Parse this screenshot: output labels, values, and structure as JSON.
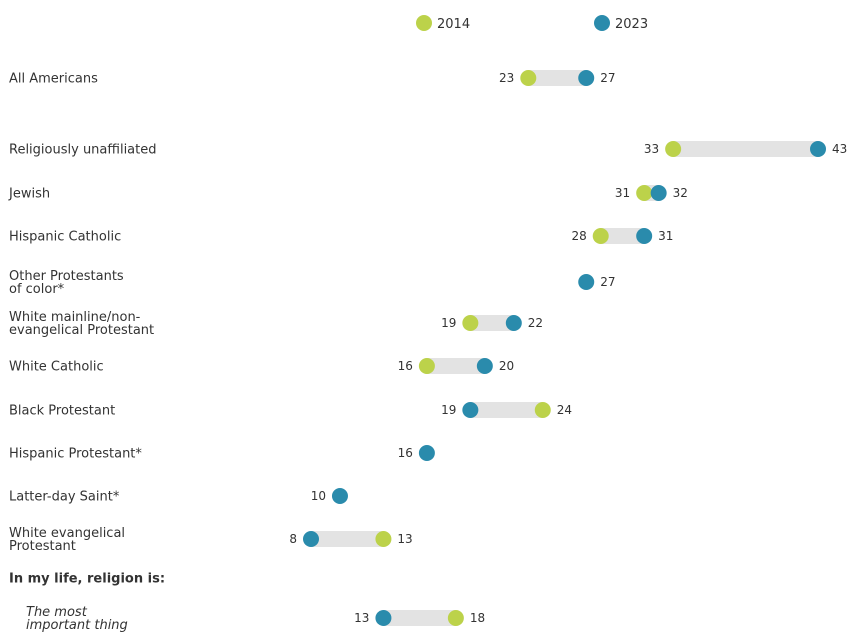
{
  "colors": {
    "y2014": "#bcd24a",
    "y2023": "#2a8bac",
    "range": "#e3e3e3",
    "text": "#333333"
  },
  "legend": {
    "label_2014": "2014",
    "label_2023": "2023"
  },
  "chart_data": {
    "type": "dumbbell",
    "series": [
      {
        "name": "2014",
        "color": "#bcd24a"
      },
      {
        "name": "2023",
        "color": "#2a8bac"
      }
    ],
    "xlim": [
      0,
      45
    ],
    "rows": [
      {
        "label": [
          "All Americans"
        ],
        "v2014": 23,
        "v2023": 27
      },
      {
        "label": [
          "Religiously unaffiliated"
        ],
        "v2014": 33,
        "v2023": 43
      },
      {
        "label": [
          "Jewish"
        ],
        "v2014": 31,
        "v2023": 32
      },
      {
        "label": [
          "Hispanic Catholic"
        ],
        "v2014": 28,
        "v2023": 31
      },
      {
        "label": [
          "Other Protestants",
          "of color*"
        ],
        "v2014": null,
        "v2023": 27
      },
      {
        "label": [
          "White mainline/non-",
          "evangelical Protestant"
        ],
        "v2014": 19,
        "v2023": 22
      },
      {
        "label": [
          "White Catholic"
        ],
        "v2014": 16,
        "v2023": 20
      },
      {
        "label": [
          "Black Protestant"
        ],
        "v2014": 24,
        "v2023": 19
      },
      {
        "label": [
          "Hispanic Protestant*"
        ],
        "v2014": null,
        "v2023": 16
      },
      {
        "label": [
          "Latter-day Saint*"
        ],
        "v2014": null,
        "v2023": 10
      },
      {
        "label": [
          "White evangelical",
          "Protestant"
        ],
        "v2014": 13,
        "v2023": 8
      },
      {
        "label": [
          "In my life, religion is:"
        ],
        "heading": true
      },
      {
        "label": [
          "The most",
          "important thing"
        ],
        "italic": true,
        "v2014": 18,
        "v2023": 13
      }
    ]
  }
}
